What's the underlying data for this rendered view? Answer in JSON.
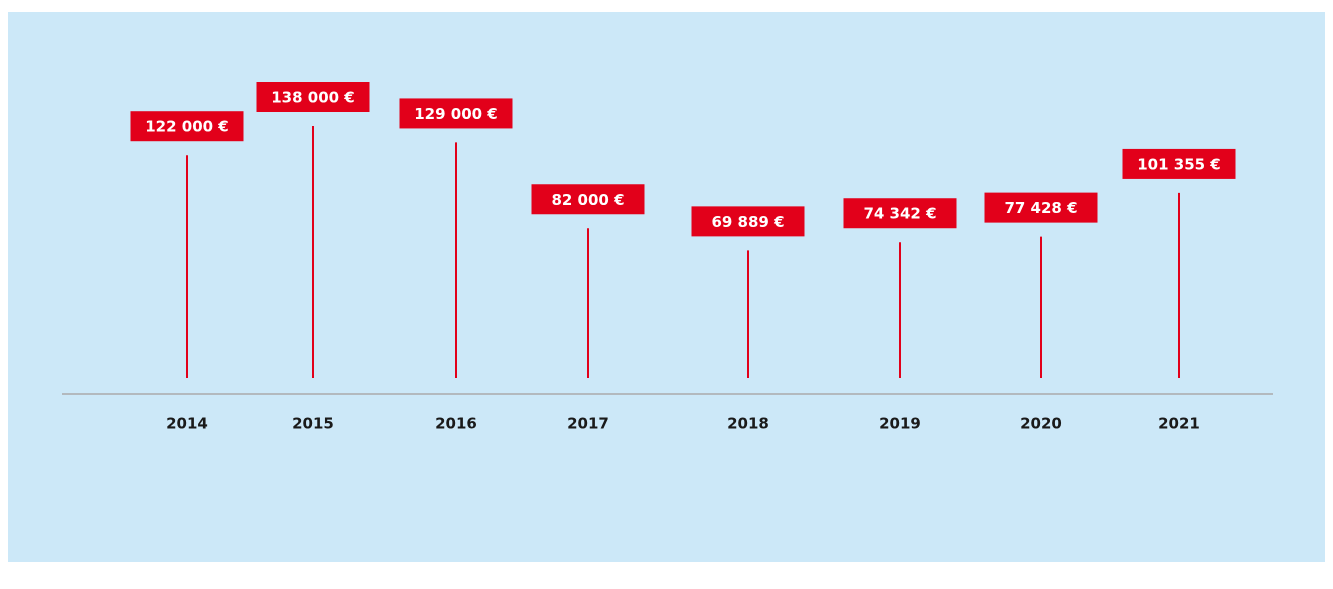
{
  "chart_data": {
    "type": "lollipop",
    "categories": [
      "2014",
      "2015",
      "2016",
      "2017",
      "2018",
      "2019",
      "2020",
      "2021"
    ],
    "values": [
      122000,
      138000,
      129000,
      82000,
      69889,
      74342,
      77428,
      101355
    ],
    "value_labels": [
      "122 000 €",
      "138 000 €",
      "129 000 €",
      "82 000 €",
      "69 889 €",
      "74 342 €",
      "77 428 €",
      "101 355 €"
    ],
    "color": "#e2001a"
  }
}
